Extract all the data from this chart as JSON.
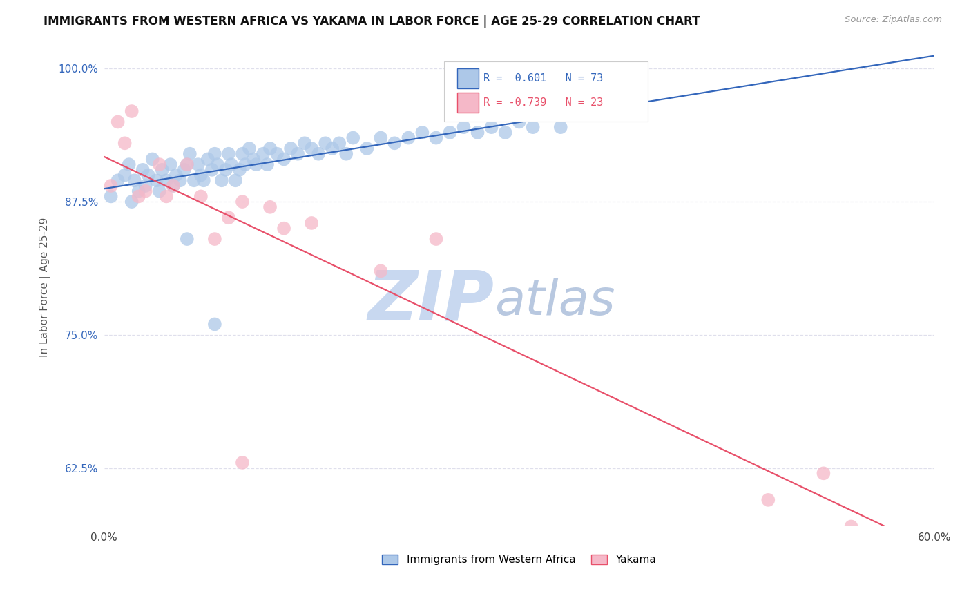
{
  "title": "IMMIGRANTS FROM WESTERN AFRICA VS YAKAMA IN LABOR FORCE | AGE 25-29 CORRELATION CHART",
  "source": "Source: ZipAtlas.com",
  "ylabel": "In Labor Force | Age 25-29",
  "xlim": [
    0.0,
    0.6
  ],
  "ylim": [
    0.57,
    1.02
  ],
  "yticks": [
    0.625,
    0.75,
    0.875,
    1.0
  ],
  "ytick_labels": [
    "62.5%",
    "75.0%",
    "87.5%",
    "100.0%"
  ],
  "xticks": [
    0.0,
    0.1,
    0.2,
    0.3,
    0.4,
    0.5,
    0.6
  ],
  "xtick_labels": [
    "0.0%",
    "",
    "",
    "",
    "",
    "",
    "60.0%"
  ],
  "background_color": "#ffffff",
  "grid_color": "#d8d8e8",
  "blue_scatter_color": "#adc8e8",
  "blue_line_color": "#3366bb",
  "pink_scatter_color": "#f5b8c8",
  "pink_line_color": "#e8506a",
  "blue_R": 0.601,
  "blue_N": 73,
  "pink_R": -0.739,
  "pink_N": 23,
  "watermark_zip": "ZIP",
  "watermark_atlas": "atlas",
  "watermark_color_zip": "#c8d8f0",
  "watermark_color_atlas": "#b8c8e0",
  "legend_label_blue": "Immigrants from Western Africa",
  "legend_label_pink": "Yakama",
  "blue_x": [
    0.005,
    0.01,
    0.015,
    0.018,
    0.02,
    0.022,
    0.025,
    0.028,
    0.03,
    0.032,
    0.035,
    0.038,
    0.04,
    0.042,
    0.045,
    0.048,
    0.05,
    0.052,
    0.055,
    0.058,
    0.06,
    0.062,
    0.065,
    0.068,
    0.07,
    0.072,
    0.075,
    0.078,
    0.08,
    0.082,
    0.085,
    0.088,
    0.09,
    0.092,
    0.095,
    0.098,
    0.1,
    0.102,
    0.105,
    0.108,
    0.11,
    0.115,
    0.118,
    0.12,
    0.125,
    0.13,
    0.135,
    0.14,
    0.145,
    0.15,
    0.155,
    0.16,
    0.165,
    0.17,
    0.175,
    0.18,
    0.19,
    0.2,
    0.21,
    0.22,
    0.23,
    0.24,
    0.25,
    0.26,
    0.27,
    0.28,
    0.29,
    0.3,
    0.31,
    0.33,
    0.06,
    0.08,
    0.35
  ],
  "blue_y": [
    0.88,
    0.895,
    0.9,
    0.91,
    0.875,
    0.895,
    0.885,
    0.905,
    0.89,
    0.9,
    0.915,
    0.895,
    0.885,
    0.905,
    0.895,
    0.91,
    0.89,
    0.9,
    0.895,
    0.905,
    0.91,
    0.92,
    0.895,
    0.91,
    0.9,
    0.895,
    0.915,
    0.905,
    0.92,
    0.91,
    0.895,
    0.905,
    0.92,
    0.91,
    0.895,
    0.905,
    0.92,
    0.91,
    0.925,
    0.915,
    0.91,
    0.92,
    0.91,
    0.925,
    0.92,
    0.915,
    0.925,
    0.92,
    0.93,
    0.925,
    0.92,
    0.93,
    0.925,
    0.93,
    0.92,
    0.935,
    0.925,
    0.935,
    0.93,
    0.935,
    0.94,
    0.935,
    0.94,
    0.945,
    0.94,
    0.945,
    0.94,
    0.95,
    0.945,
    0.945,
    0.84,
    0.76,
    0.96
  ],
  "pink_x": [
    0.005,
    0.01,
    0.015,
    0.02,
    0.025,
    0.03,
    0.04,
    0.045,
    0.05,
    0.06,
    0.07,
    0.08,
    0.09,
    0.1,
    0.12,
    0.13,
    0.15,
    0.2,
    0.24,
    0.48,
    0.52,
    0.54,
    0.1
  ],
  "pink_y": [
    0.89,
    0.95,
    0.93,
    0.96,
    0.88,
    0.885,
    0.91,
    0.88,
    0.89,
    0.91,
    0.88,
    0.84,
    0.86,
    0.875,
    0.87,
    0.85,
    0.855,
    0.81,
    0.84,
    0.595,
    0.62,
    0.57,
    0.63
  ]
}
